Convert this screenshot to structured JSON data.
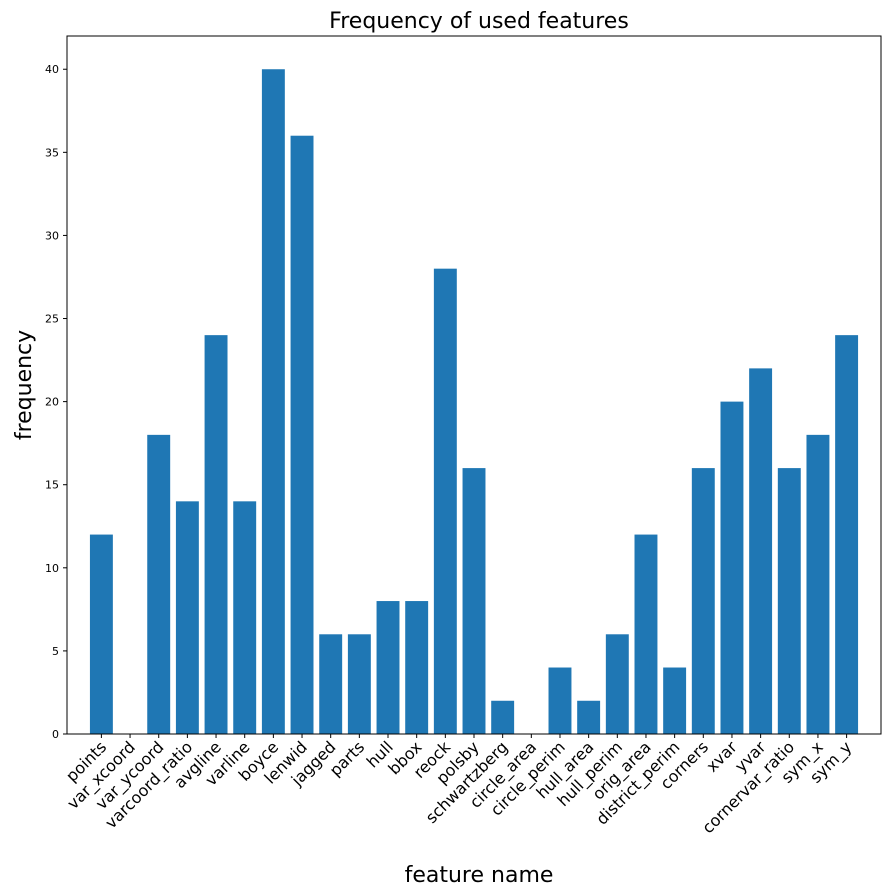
{
  "chart_data": {
    "type": "bar",
    "title": "Frequency of used features",
    "xlabel": "feature name",
    "ylabel": "frequency",
    "ylim": [
      0,
      42
    ],
    "yticks": [
      0,
      5,
      10,
      15,
      20,
      25,
      30,
      35,
      40
    ],
    "grid": false,
    "bar_color": "#1f77b4",
    "categories": [
      "points",
      "var_xcoord",
      "var_ycoord",
      "varcoord_ratio",
      "avgline",
      "varline",
      "boyce",
      "lenwid",
      "jagged",
      "parts",
      "hull",
      "bbox",
      "reock",
      "polsby",
      "schwartzberg",
      "circle_area",
      "circle_perim",
      "hull_area",
      "hull_perim",
      "orig_area",
      "district_perim",
      "corners",
      "xvar",
      "yvar",
      "cornervar_ratio",
      "sym_x",
      "sym_y"
    ],
    "values": [
      12,
      0,
      18,
      14,
      24,
      14,
      40,
      36,
      6,
      6,
      8,
      8,
      28,
      16,
      2,
      0,
      4,
      2,
      6,
      12,
      4,
      16,
      20,
      22,
      16,
      18,
      24
    ]
  }
}
